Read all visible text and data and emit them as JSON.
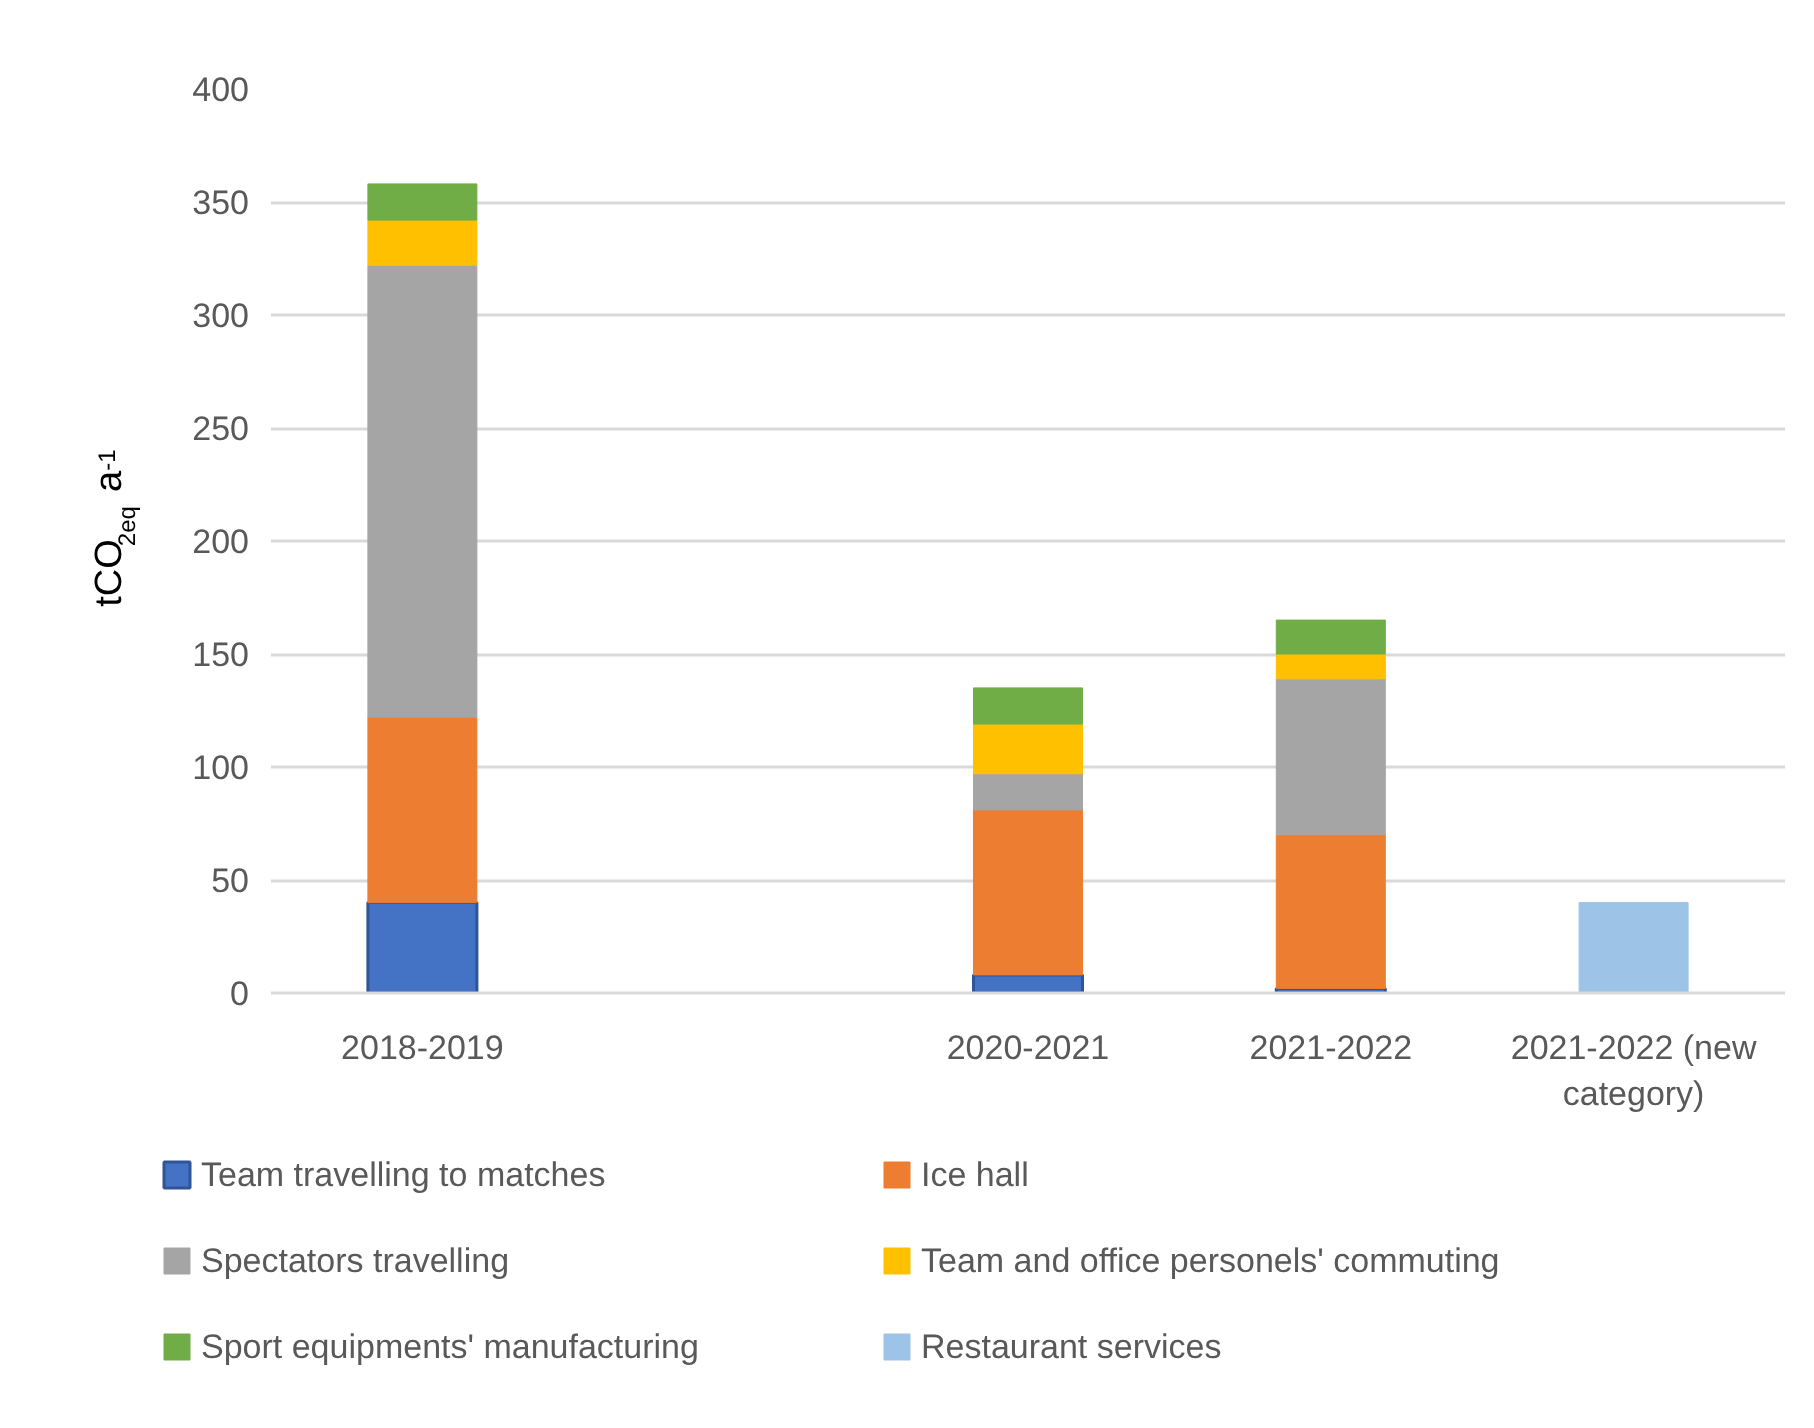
{
  "chart_data": {
    "type": "bar",
    "stacked": true,
    "ylabel": "tCO$_{2eq}$ a$^{-1}$",
    "categories": [
      "2018-2019",
      null,
      "2020-2021",
      "2021-2022",
      "2021-2022 (new category)"
    ],
    "series": [
      {
        "name": "Team travelling to matches",
        "color": "#4472c4",
        "values": [
          40,
          null,
          8,
          2,
          null
        ]
      },
      {
        "name": "Ice hall",
        "color": "#ed7d31",
        "values": [
          82,
          null,
          73,
          68,
          null
        ]
      },
      {
        "name": "Spectators travelling",
        "color": "#a5a5a5",
        "values": [
          200,
          null,
          16,
          69,
          null
        ]
      },
      {
        "name": "Team and office personels' commuting",
        "color": "#ffc000",
        "values": [
          20,
          null,
          22,
          11,
          null
        ]
      },
      {
        "name": "Sport equipments' manufacturing",
        "color": "#70ad47",
        "values": [
          16,
          null,
          16,
          15,
          null
        ]
      },
      {
        "name": "Restaurant services",
        "color": "#9dc3e6",
        "values": [
          null,
          null,
          null,
          null,
          40
        ]
      }
    ],
    "ylim": [
      0,
      400
    ],
    "yticks": [
      0,
      50,
      100,
      150,
      200,
      250,
      300,
      350,
      400
    ],
    "grid": "y",
    "legend": "bottom"
  }
}
